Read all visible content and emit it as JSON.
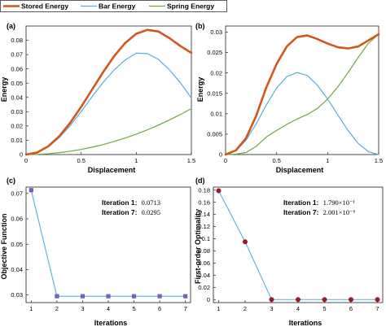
{
  "legend": {
    "items": [
      {
        "label": "Stored Energy",
        "color": "#d2561e",
        "width": 2.6
      },
      {
        "label": "Bar Energy",
        "color": "#55aee0",
        "width": 1.2
      },
      {
        "label": "Spring Energy",
        "color": "#6ea83a",
        "width": 1.2
      }
    ]
  },
  "chart_data": [
    {
      "panel": "(a)",
      "type": "line",
      "xlabel": "Displacement",
      "ylabel": "Energy",
      "xlim": [
        0,
        1.5
      ],
      "ylim": [
        0,
        0.09
      ],
      "xticks": [
        0,
        0.5,
        1,
        1.5
      ],
      "xticklabels": [
        "0",
        "0.5",
        "1",
        "1.5"
      ],
      "yticks": [
        0,
        0.01,
        0.02,
        0.03,
        0.04,
        0.05,
        0.06,
        0.07,
        0.08
      ],
      "yticklabels": [
        "0",
        "0.01",
        "0.02",
        "0.03",
        "0.04",
        "0.05",
        "0.06",
        "0.07",
        "0.08"
      ],
      "grid": false,
      "series": [
        {
          "name": "Stored Energy",
          "color": "#d2561e",
          "x": [
            0,
            0.1,
            0.2,
            0.3,
            0.4,
            0.5,
            0.6,
            0.7,
            0.8,
            0.9,
            1.0,
            1.1,
            1.2,
            1.3,
            1.4,
            1.5
          ],
          "y": [
            0,
            0.0014,
            0.0057,
            0.0127,
            0.0222,
            0.0334,
            0.0456,
            0.0578,
            0.069,
            0.0782,
            0.0846,
            0.0873,
            0.0862,
            0.0816,
            0.076,
            0.0712
          ]
        },
        {
          "name": "Bar Energy",
          "color": "#55aee0",
          "x": [
            0,
            0.1,
            0.2,
            0.3,
            0.4,
            0.5,
            0.6,
            0.7,
            0.8,
            0.9,
            1.0,
            1.1,
            1.2,
            1.3,
            1.4,
            1.5
          ],
          "y": [
            0,
            0.0013,
            0.0053,
            0.0117,
            0.0202,
            0.0301,
            0.0406,
            0.0506,
            0.0593,
            0.0663,
            0.071,
            0.0707,
            0.0667,
            0.0594,
            0.0503,
            0.0395
          ]
        },
        {
          "name": "Spring Energy",
          "color": "#6ea83a",
          "x": [
            0,
            0.1,
            0.2,
            0.3,
            0.4,
            0.5,
            0.6,
            0.7,
            0.8,
            0.9,
            1.0,
            1.1,
            1.2,
            1.3,
            1.4,
            1.5
          ],
          "y": [
            0,
            0.0001,
            0.0006,
            0.0013,
            0.0023,
            0.0036,
            0.0052,
            0.007,
            0.0092,
            0.0116,
            0.0143,
            0.0173,
            0.0206,
            0.0242,
            0.028,
            0.0322
          ]
        }
      ]
    },
    {
      "panel": "(b)",
      "type": "line",
      "xlabel": "Displacement",
      "ylabel": "Energy",
      "xlim": [
        0,
        1.5
      ],
      "ylim": [
        0,
        0.0315
      ],
      "xticks": [
        0,
        0.5,
        1,
        1.5
      ],
      "xticklabels": [
        "0",
        "0.5",
        "1",
        "1.5"
      ],
      "yticks": [
        0,
        0.005,
        0.01,
        0.015,
        0.02,
        0.025,
        0.03
      ],
      "yticklabels": [
        "0",
        "0.005",
        "0.01",
        "0.015",
        "0.02",
        "0.025",
        "0.03"
      ],
      "grid": false,
      "series": [
        {
          "name": "Stored Energy",
          "color": "#d2561e",
          "x": [
            0,
            0.1,
            0.2,
            0.3,
            0.4,
            0.5,
            0.6,
            0.7,
            0.8,
            0.9,
            1.0,
            1.1,
            1.2,
            1.3,
            1.4,
            1.5
          ],
          "y": [
            0,
            0.001,
            0.004,
            0.0095,
            0.0165,
            0.0222,
            0.0265,
            0.0288,
            0.0292,
            0.0283,
            0.0272,
            0.0263,
            0.026,
            0.0265,
            0.028,
            0.0295
          ]
        },
        {
          "name": "Bar Energy",
          "color": "#55aee0",
          "x": [
            0,
            0.1,
            0.2,
            0.3,
            0.4,
            0.5,
            0.6,
            0.7,
            0.8,
            0.9,
            1.0,
            1.1,
            1.2,
            1.3,
            1.4,
            1.5
          ],
          "y": [
            0,
            0.0009,
            0.0035,
            0.0075,
            0.0122,
            0.0163,
            0.0191,
            0.0201,
            0.0194,
            0.017,
            0.0136,
            0.0097,
            0.0059,
            0.0027,
            0.0007,
            0.0
          ]
        },
        {
          "name": "Spring Energy",
          "color": "#6ea83a",
          "x": [
            0,
            0.1,
            0.2,
            0.3,
            0.4,
            0.5,
            0.6,
            0.7,
            0.8,
            0.9,
            1.0,
            1.1,
            1.2,
            1.3,
            1.4,
            1.5
          ],
          "y": [
            0,
            0.0001,
            0.0005,
            0.002,
            0.0043,
            0.0059,
            0.0074,
            0.0087,
            0.0098,
            0.0113,
            0.0136,
            0.0166,
            0.0201,
            0.0238,
            0.0273,
            0.0295
          ]
        }
      ]
    },
    {
      "panel": "(c)",
      "type": "line",
      "xlabel": "Iterations",
      "ylabel": "Objective Function",
      "xlim": [
        0.8,
        7.2
      ],
      "ylim": [
        0.027,
        0.0725
      ],
      "xticks": [
        1,
        2,
        3,
        4,
        5,
        6,
        7
      ],
      "xticklabels": [
        "1",
        "2",
        "3",
        "4",
        "5",
        "6",
        "7"
      ],
      "yticks": [
        0.03,
        0.04,
        0.05,
        0.06,
        0.07
      ],
      "yticklabels": [
        "0.03",
        "0.04",
        "0.05",
        "0.06",
        "0.07"
      ],
      "grid": false,
      "line_color": "#55aee0",
      "marker_color": "#7a62c8",
      "marker": "square",
      "x": [
        1,
        2,
        3,
        4,
        5,
        6,
        7
      ],
      "y": [
        0.0713,
        0.0295,
        0.0295,
        0.0295,
        0.0295,
        0.0295,
        0.0295
      ],
      "annotations": [
        {
          "label": "Iteration 1:",
          "value": "0.0713"
        },
        {
          "label": "Iteration 7:",
          "value": "0.0295"
        }
      ]
    },
    {
      "panel": "(d)",
      "type": "line",
      "xlabel": "Iterations",
      "ylabel": "First-order Optimality",
      "xlim": [
        0.8,
        7.2
      ],
      "ylim": [
        -0.005,
        0.185
      ],
      "xticks": [
        1,
        2,
        3,
        4,
        5,
        6,
        7
      ],
      "xticklabels": [
        "1",
        "2",
        "3",
        "4",
        "5",
        "6",
        "7"
      ],
      "yticks": [
        0,
        0.02,
        0.04,
        0.06,
        0.08,
        0.1,
        0.12,
        0.14,
        0.16,
        0.18
      ],
      "yticklabels": [
        "0",
        "0.02",
        "0.04",
        "0.06",
        "0.08",
        "0.1",
        "0.12",
        "0.14",
        "0.16",
        "0.18"
      ],
      "grid": false,
      "line_color": "#55aee0",
      "marker_color": "#a01a2a",
      "marker": "circle",
      "x": [
        1,
        2,
        3,
        4,
        5,
        6,
        7
      ],
      "y": [
        0.179,
        0.095,
        0.0,
        0.0,
        0.0,
        0.0,
        0.0
      ],
      "annotations": [
        {
          "label": "Iteration 1:",
          "value": "1.790×10⁻¹"
        },
        {
          "label": "Iteration 7:",
          "value": "2.001×10⁻⁶"
        }
      ]
    }
  ]
}
